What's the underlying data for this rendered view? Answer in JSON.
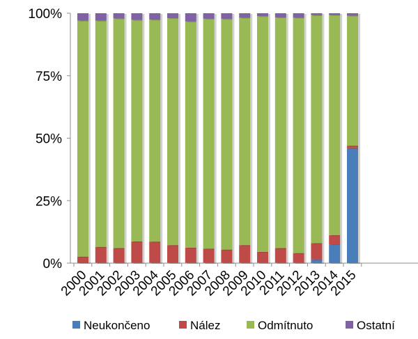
{
  "chart_data": {
    "type": "bar",
    "stacked": "percent",
    "categories": [
      "2000",
      "2001",
      "2002",
      "2003",
      "2004",
      "2005",
      "2006",
      "2007",
      "2008",
      "2009",
      "2010",
      "2011",
      "2012",
      "2013",
      "2014",
      "2015"
    ],
    "series": [
      {
        "name": "Neukončeno",
        "color": "#4a7ebb",
        "values": [
          0.1,
          0.2,
          0.2,
          0.2,
          0.2,
          0.2,
          0.2,
          0.2,
          0.2,
          0.2,
          0.2,
          0.2,
          0.2,
          1.5,
          7.5,
          46
        ]
      },
      {
        "name": "Nález",
        "color": "#be4b48",
        "values": [
          2.5,
          6.3,
          5.8,
          8.5,
          8.4,
          7.0,
          6.0,
          5.6,
          5.2,
          7.0,
          4.3,
          5.8,
          3.8,
          6.5,
          3.7,
          1.0
        ]
      },
      {
        "name": "Odmítnuto",
        "color": "#98b954",
        "values": [
          94.4,
          90.5,
          91.9,
          88.6,
          88.8,
          90.8,
          90.5,
          92.0,
          92.3,
          91.0,
          94.3,
          92.3,
          94.2,
          91.2,
          88.1,
          52.0
        ]
      },
      {
        "name": "Ostatní",
        "color": "#7e62a1",
        "values": [
          3.0,
          3.0,
          2.1,
          2.7,
          2.6,
          2.0,
          3.3,
          2.2,
          2.3,
          1.8,
          1.2,
          1.7,
          1.8,
          0.8,
          0.7,
          1.0
        ]
      }
    ],
    "y_ticks": [
      "0%",
      "25%",
      "50%",
      "75%",
      "100%"
    ],
    "ylim": [
      0,
      100
    ],
    "grid": false,
    "legend_position": "bottom"
  }
}
